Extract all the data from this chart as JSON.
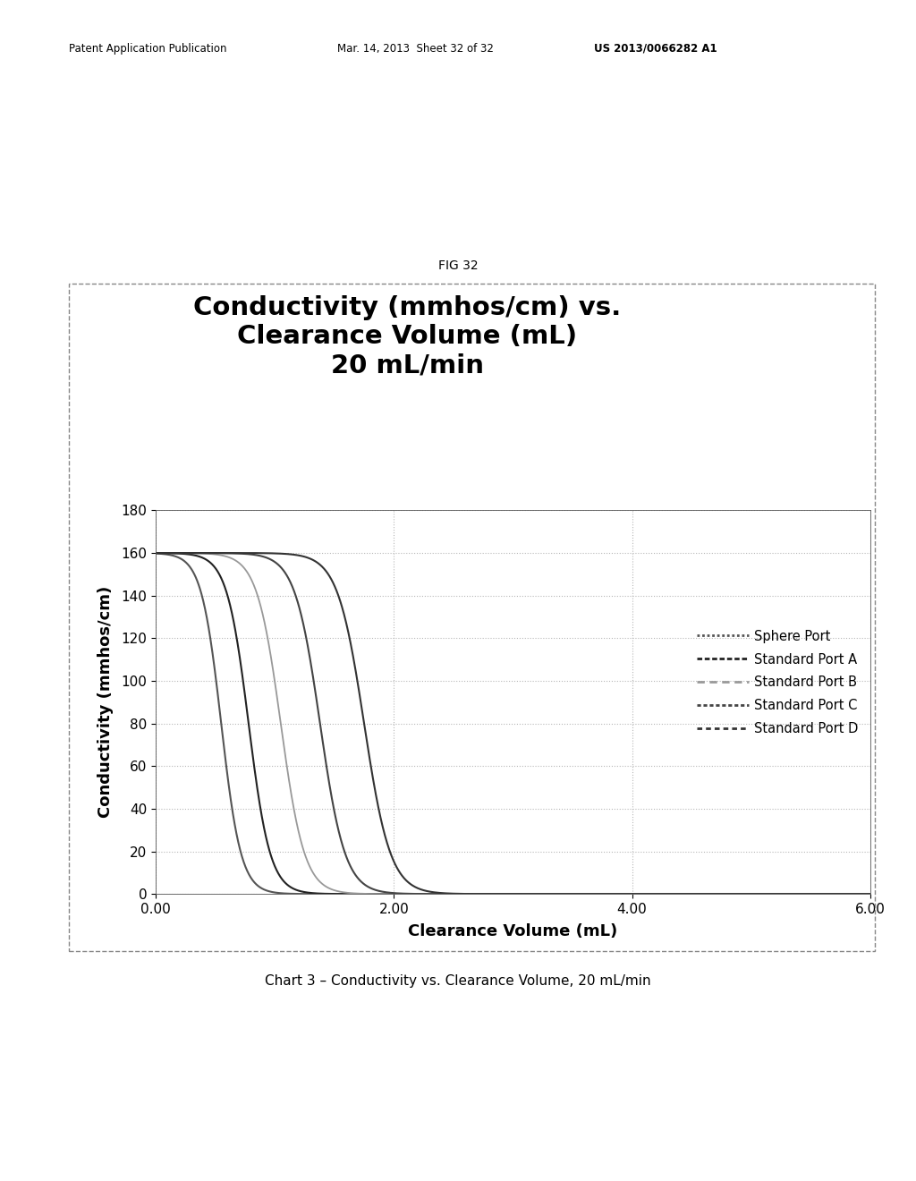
{
  "title_line1": "Conductivity (mmhos/cm) vs.",
  "title_line2": "Clearance Volume (mL)",
  "title_line3": "20 mL/min",
  "xlabel": "Clearance Volume (mL)",
  "ylabel": "Conductivity (mmhos/cm)",
  "fig_label": "FIG 32",
  "chart_caption": "Chart 3 – Conductivity vs. Clearance Volume, 20 mL/min",
  "ylim": [
    0,
    180
  ],
  "xlim": [
    0.0,
    6.0
  ],
  "yticks": [
    0,
    20,
    40,
    60,
    80,
    100,
    120,
    140,
    160,
    180
  ],
  "xticks": [
    0.0,
    2.0,
    4.0,
    6.0
  ],
  "xtick_labels": [
    "0.00",
    "2.00",
    "4.00",
    "6.00"
  ],
  "y_max": 160.0,
  "series": [
    {
      "name": "Sphere Port",
      "color": "#555555",
      "linewidth": 1.5,
      "midpoint": 0.55,
      "steepness": 12.0
    },
    {
      "name": "Standard Port A",
      "color": "#222222",
      "linewidth": 1.5,
      "midpoint": 0.78,
      "steepness": 11.0
    },
    {
      "name": "Standard Port B",
      "color": "#999999",
      "linewidth": 1.3,
      "midpoint": 1.05,
      "steepness": 10.0
    },
    {
      "name": "Standard Port C",
      "color": "#444444",
      "linewidth": 1.5,
      "midpoint": 1.38,
      "steepness": 9.5
    },
    {
      "name": "Standard Port D",
      "color": "#333333",
      "linewidth": 1.5,
      "midpoint": 1.75,
      "steepness": 9.0
    }
  ],
  "background_color": "#ffffff",
  "grid_color": "#aaaaaa",
  "title_fontsize": 21,
  "axis_label_fontsize": 13,
  "tick_fontsize": 11,
  "legend_fontsize": 10.5,
  "fig_label_fontsize": 10,
  "caption_fontsize": 11,
  "header_fontsize": 8.5
}
